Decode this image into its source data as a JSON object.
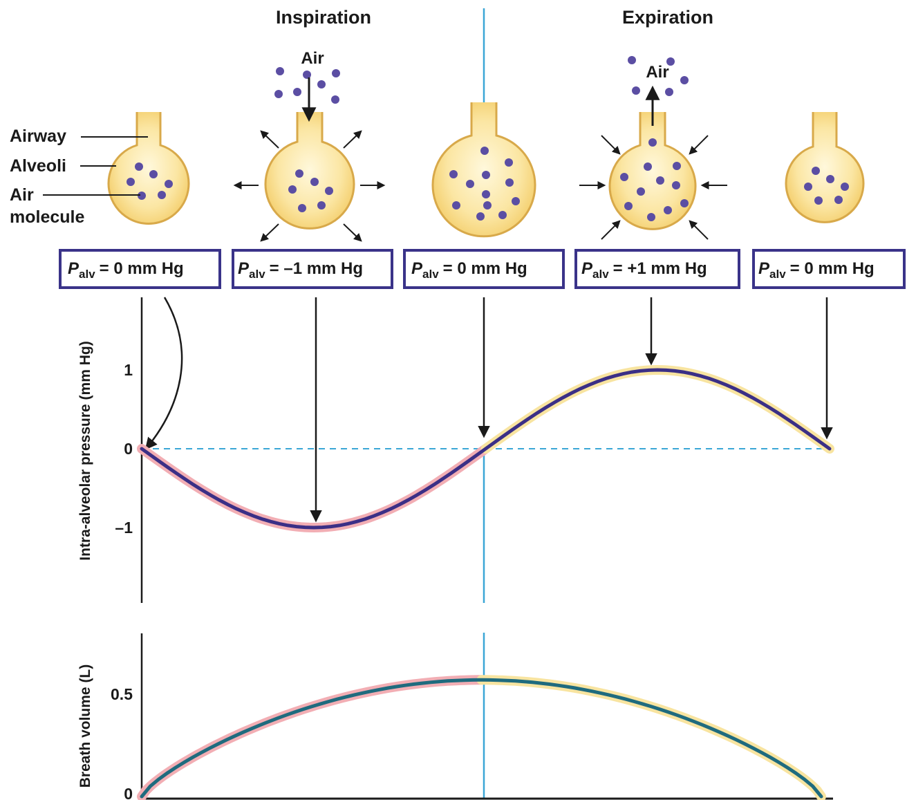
{
  "phases": {
    "inspiration": "Inspiration",
    "expiration": "Expiration"
  },
  "labels": {
    "airway": "Airway",
    "alveoli": "Alveoli",
    "air_molecule_1": "Air",
    "air_molecule_2": "molecule",
    "air": "Air"
  },
  "pressure_boxes": [
    {
      "var": "P",
      "sub": "alv",
      "value": "= 0 mm Hg"
    },
    {
      "var": "P",
      "sub": "alv",
      "value": "= –1 mm Hg"
    },
    {
      "var": "P",
      "sub": "alv",
      "value": "= 0 mm Hg"
    },
    {
      "var": "P",
      "sub": "alv",
      "value": "= +1 mm Hg"
    },
    {
      "var": "P",
      "sub": "alv",
      "value": "= 0 mm Hg"
    }
  ],
  "colors": {
    "molecule": "#5b4ea3",
    "alveolus_fill": "#fbe6a3",
    "alveolus_core": "#fdf3cf",
    "alveolus_stroke": "#d8a94a",
    "box_border": "#3a3389",
    "pressure_curve": "#3b2f86",
    "volume_curve": "#1f6b7e",
    "inspiration_glow": "#f2aeb4",
    "expiration_glow": "#f8e4a0",
    "divider": "#3aa6d6",
    "baseline": "#3aa6d6"
  },
  "chart_data": [
    {
      "type": "line",
      "ylabel": "Intra-alveolar pressure (mm Hg)",
      "ylim": [
        -2,
        2
      ],
      "y_ticks": [
        "1",
        "0",
        "–1"
      ],
      "y_tick_values": [
        1,
        0,
        -1
      ],
      "series": [
        {
          "x": [
            0,
            0.25,
            0.5,
            0.75,
            1
          ],
          "values": [
            0,
            -1,
            0,
            1,
            0
          ]
        }
      ],
      "baseline": 0
    },
    {
      "type": "line",
      "ylabel": "Breath volume (L)",
      "ylim": [
        0,
        0.75
      ],
      "y_ticks": [
        "0.5",
        "0"
      ],
      "y_tick_values": [
        0.5,
        0
      ],
      "series": [
        {
          "x": [
            0,
            0.5,
            1
          ],
          "values": [
            0,
            0.57,
            0
          ]
        }
      ]
    }
  ]
}
